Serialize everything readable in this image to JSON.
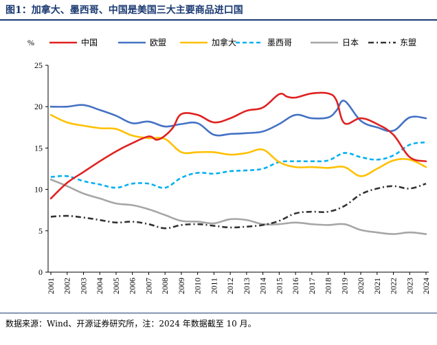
{
  "figure_label": "图1：加拿大、墨西哥、中国是美国三大主要商品进口国",
  "source_note": "数据来源：Wind、开源证券研究所，注：2024 年数据截至 10 月。",
  "chart_data": {
    "type": "line",
    "title": "图1：加拿大、墨西哥、中国是美国三大主要商品进口国",
    "ylabel": "%",
    "xlabel": "",
    "ylim": [
      0,
      25
    ],
    "yticks": [
      0,
      5,
      10,
      15,
      20,
      25
    ],
    "categories": [
      "2001",
      "2002",
      "2003",
      "2004",
      "2005",
      "2006",
      "2007",
      "2008",
      "2009",
      "2010",
      "2011",
      "2012",
      "2013",
      "2014",
      "2015",
      "2016",
      "2017",
      "2018",
      "2019",
      "2020",
      "2021",
      "2022",
      "2023",
      "2024"
    ],
    "legend_position": "top",
    "grid": false,
    "series": [
      {
        "name": "中国",
        "color": "#e02020",
        "dash": "solid",
        "x": [
          2001.0,
          2002.0,
          2003.0,
          2004.0,
          2005.0,
          2006.0,
          2007.0,
          2007.5,
          2008.0,
          2008.5,
          2009.0,
          2010.0,
          2011.0,
          2012.0,
          2013.0,
          2014.0,
          2015.0,
          2015.5,
          2016.0,
          2017.0,
          2018.0,
          2018.5,
          2019.0,
          2020.0,
          2021.0,
          2022.0,
          2023.0,
          2024.0
        ],
        "y": [
          8.9,
          10.8,
          12.1,
          13.4,
          14.6,
          15.6,
          16.4,
          16.0,
          16.5,
          17.5,
          19.1,
          19.0,
          18.1,
          18.6,
          19.5,
          19.9,
          21.5,
          21.2,
          21.1,
          21.6,
          21.6,
          20.8,
          18.0,
          18.6,
          17.9,
          16.6,
          13.9,
          13.4
        ]
      },
      {
        "name": "欧盟",
        "color": "#4472c4",
        "dash": "solid",
        "x": [
          2001.0,
          2002.0,
          2003.0,
          2004.0,
          2005.0,
          2006.0,
          2007.0,
          2008.0,
          2009.0,
          2010.0,
          2011.0,
          2012.0,
          2013.0,
          2014.0,
          2015.0,
          2016.0,
          2017.0,
          2018.0,
          2018.5,
          2019.0,
          2020.0,
          2021.0,
          2022.0,
          2023.0,
          2024.0
        ],
        "y": [
          20.0,
          20.0,
          20.2,
          19.6,
          18.9,
          18.0,
          18.2,
          17.6,
          17.9,
          18.0,
          16.6,
          16.7,
          16.8,
          17.0,
          17.9,
          19.0,
          18.6,
          18.7,
          19.5,
          20.7,
          18.3,
          17.5,
          17.1,
          18.7,
          18.6
        ]
      },
      {
        "name": "加拿大",
        "color": "#ffc000",
        "dash": "solid",
        "x": [
          2001.0,
          2002.0,
          2003.0,
          2004.0,
          2005.0,
          2006.0,
          2007.0,
          2008.0,
          2009.0,
          2010.0,
          2011.0,
          2012.0,
          2013.0,
          2014.0,
          2015.0,
          2016.0,
          2017.0,
          2018.0,
          2019.0,
          2020.0,
          2021.0,
          2022.0,
          2023.0,
          2024.0
        ],
        "y": [
          19.0,
          18.1,
          17.7,
          17.4,
          17.3,
          16.5,
          16.2,
          16.1,
          14.5,
          14.5,
          14.5,
          14.2,
          14.4,
          14.8,
          13.3,
          12.7,
          12.7,
          12.6,
          12.7,
          11.6,
          12.5,
          13.5,
          13.6,
          12.7
        ]
      },
      {
        "name": "墨西哥",
        "color": "#00b0f0",
        "dash": "dashed",
        "x": [
          2001.0,
          2002.0,
          2003.0,
          2004.0,
          2005.0,
          2006.0,
          2007.0,
          2008.0,
          2009.0,
          2010.0,
          2011.0,
          2012.0,
          2013.0,
          2014.0,
          2015.0,
          2016.0,
          2017.0,
          2018.0,
          2019.0,
          2020.0,
          2021.0,
          2022.0,
          2023.0,
          2024.0
        ],
        "y": [
          11.5,
          11.6,
          11.0,
          10.6,
          10.2,
          10.7,
          10.7,
          10.2,
          11.4,
          12.0,
          11.9,
          12.2,
          12.3,
          12.5,
          13.3,
          13.4,
          13.4,
          13.5,
          14.4,
          13.9,
          13.6,
          14.1,
          15.4,
          15.7
        ]
      },
      {
        "name": "日本",
        "color": "#a6a6a6",
        "dash": "solid",
        "x": [
          2001.0,
          2002.0,
          2003.0,
          2004.0,
          2005.0,
          2006.0,
          2007.0,
          2008.0,
          2009.0,
          2010.0,
          2011.0,
          2012.0,
          2013.0,
          2014.0,
          2015.0,
          2016.0,
          2017.0,
          2018.0,
          2019.0,
          2020.0,
          2021.0,
          2022.0,
          2023.0,
          2024.0
        ],
        "y": [
          11.2,
          10.4,
          9.5,
          8.9,
          8.3,
          8.1,
          7.6,
          6.9,
          6.2,
          6.1,
          5.9,
          6.4,
          6.3,
          5.8,
          5.8,
          6.0,
          5.8,
          5.7,
          5.8,
          5.1,
          4.8,
          4.6,
          4.8,
          4.6
        ]
      },
      {
        "name": "东盟",
        "color": "#333333",
        "dash": "dashdot",
        "x": [
          2001.0,
          2002.0,
          2003.0,
          2004.0,
          2005.0,
          2006.0,
          2007.0,
          2008.0,
          2009.0,
          2010.0,
          2011.0,
          2012.0,
          2013.0,
          2014.0,
          2015.0,
          2016.0,
          2017.0,
          2018.0,
          2019.0,
          2020.0,
          2021.0,
          2022.0,
          2023.0,
          2024.0
        ],
        "y": [
          6.7,
          6.8,
          6.6,
          6.3,
          6.0,
          6.1,
          5.8,
          5.3,
          5.7,
          5.8,
          5.6,
          5.4,
          5.5,
          5.7,
          6.2,
          7.1,
          7.3,
          7.3,
          8.0,
          9.4,
          10.1,
          10.4,
          10.1,
          10.7
        ]
      }
    ]
  }
}
